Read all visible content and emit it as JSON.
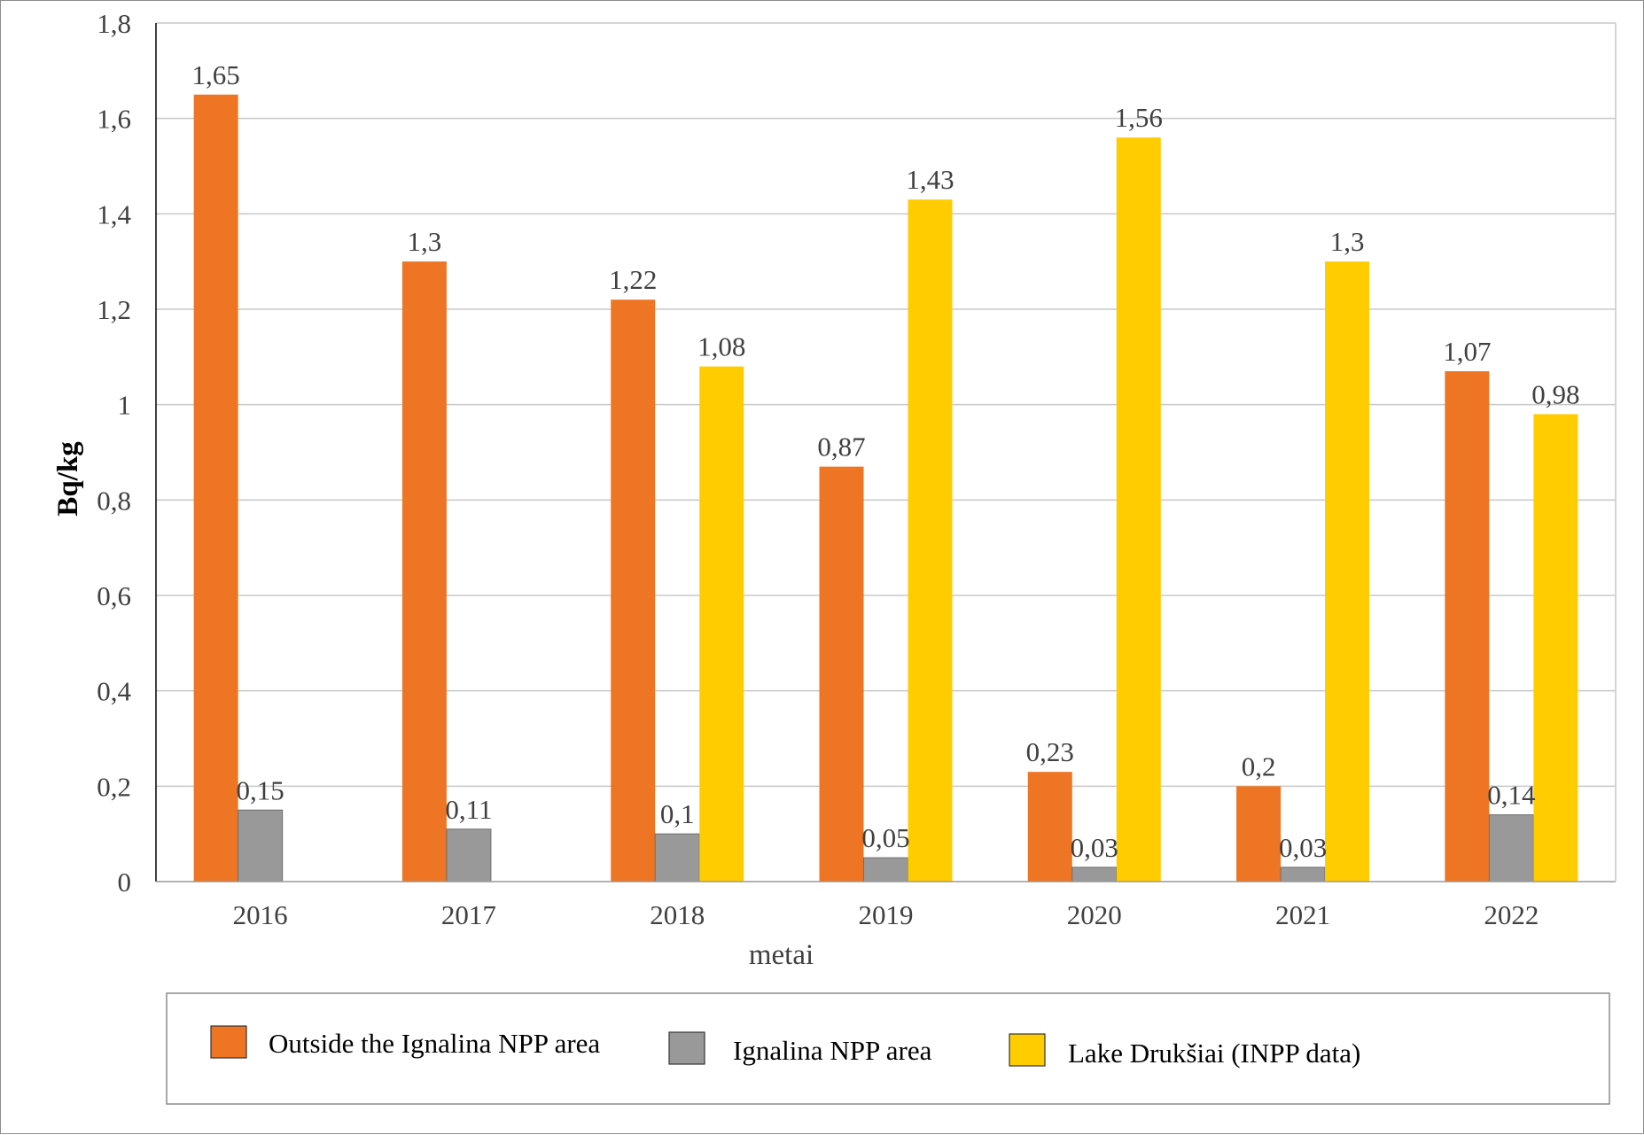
{
  "chart_data": {
    "type": "bar",
    "categories": [
      "2016",
      "2017",
      "2018",
      "2019",
      "2020",
      "2021",
      "2022"
    ],
    "series": [
      {
        "name": "Outside the Ignalina NPP area",
        "color": "#ED7523",
        "values": [
          1.65,
          1.3,
          1.22,
          0.87,
          0.23,
          0.2,
          1.07
        ],
        "labels": [
          "1,65",
          "1,3",
          "1,22",
          "0,87",
          "0,23",
          "0,2",
          "1,07"
        ]
      },
      {
        "name": "Ignalina NPP area",
        "color": "#999999",
        "values": [
          0.15,
          0.11,
          0.1,
          0.05,
          0.03,
          0.03,
          0.14
        ],
        "labels": [
          "0,15",
          "0,11",
          "0,1",
          "0,05",
          "0,03",
          "0,03",
          "0,14"
        ]
      },
      {
        "name": "Lake Drukšiai (INPP data)",
        "color": "#FFCC00",
        "values": [
          null,
          null,
          1.08,
          1.43,
          1.56,
          1.3,
          0.98
        ],
        "labels": [
          "",
          "",
          "1,08",
          "1,43",
          "1,56",
          "1,3",
          "0,98"
        ]
      }
    ],
    "xlabel": "metai",
    "ylabel": "Bq/kg",
    "ylim": [
      0,
      1.8
    ],
    "yticks": [
      0,
      0.2,
      0.4,
      0.6,
      0.8,
      1,
      1.2,
      1.4,
      1.6,
      1.8
    ],
    "ytick_labels": [
      "0",
      "0,2",
      "0,4",
      "0,6",
      "0,8",
      "1",
      "1,2",
      "1,4",
      "1,6",
      "1,8"
    ],
    "grid": true,
    "legend_position": "bottom"
  }
}
